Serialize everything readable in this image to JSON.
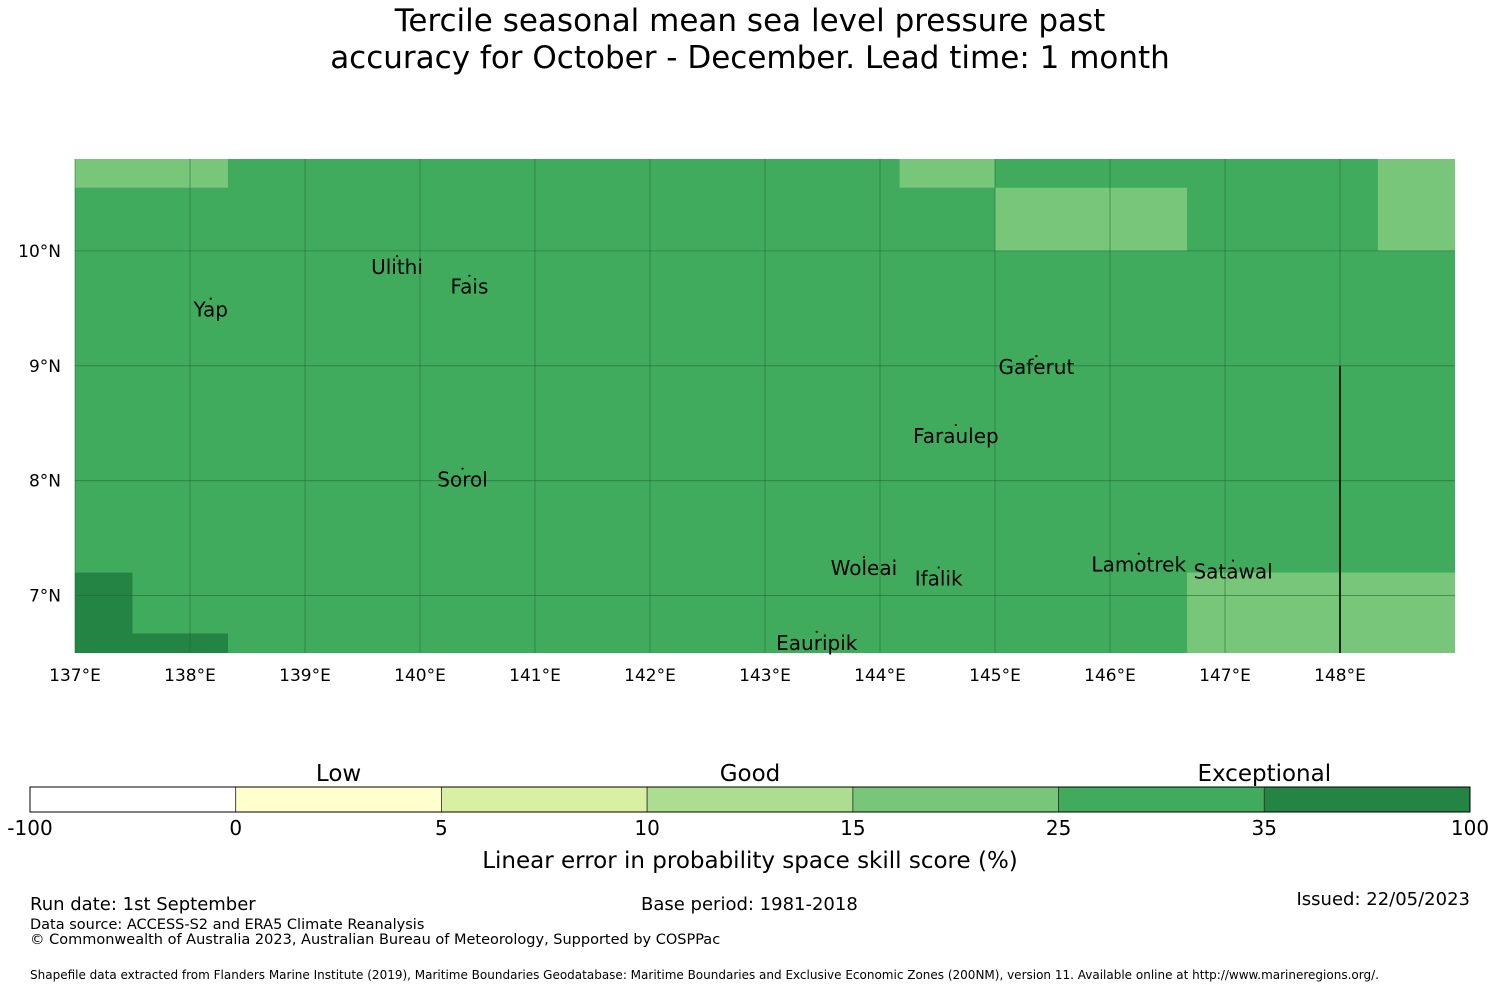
{
  "title": {
    "line1": "Tercile seasonal mean sea level pressure past",
    "line2": "accuracy for October - December. Lead time: 1 month"
  },
  "map": {
    "lon_range": [
      137,
      149
    ],
    "lat_range": [
      6.5,
      10.8
    ],
    "x_ticks": [
      "137°E",
      "138°E",
      "139°E",
      "140°E",
      "141°E",
      "142°E",
      "143°E",
      "144°E",
      "145°E",
      "146°E",
      "147°E",
      "148°E"
    ],
    "y_ticks": [
      "10°N",
      "9°N",
      "8°N",
      "7°N"
    ],
    "base_color": "#41ab5d",
    "cells": [
      {
        "lon": [
          137.0,
          138.33
        ],
        "lat": [
          10.55,
          10.8
        ],
        "color": "#78c679"
      },
      {
        "lon": [
          144.17,
          145.0
        ],
        "lat": [
          10.55,
          10.8
        ],
        "color": "#78c679"
      },
      {
        "lon": [
          145.0,
          146.67
        ],
        "lat": [
          10.0,
          10.55
        ],
        "color": "#78c679"
      },
      {
        "lon": [
          148.33,
          149.0
        ],
        "lat": [
          10.0,
          10.8
        ],
        "color": "#78c679"
      },
      {
        "lon": [
          146.67,
          149.0
        ],
        "lat": [
          6.5,
          7.2
        ],
        "color": "#78c679"
      },
      {
        "lon": [
          137.0,
          137.5
        ],
        "lat": [
          6.5,
          7.2
        ],
        "color": "#238443"
      },
      {
        "lon": [
          137.5,
          138.33
        ],
        "lat": [
          6.5,
          6.67
        ],
        "color": "#238443"
      }
    ],
    "places": [
      {
        "name": "Ulithi",
        "lon": 139.8,
        "lat": 9.85
      },
      {
        "name": "Fais",
        "lon": 140.43,
        "lat": 9.68
      },
      {
        "name": "Yap",
        "lon": 138.18,
        "lat": 9.48
      },
      {
        "name": "Gaferut",
        "lon": 145.36,
        "lat": 8.98
      },
      {
        "name": "Faraulep",
        "lon": 144.66,
        "lat": 8.38
      },
      {
        "name": "Sorol",
        "lon": 140.37,
        "lat": 8.0
      },
      {
        "name": "Woleai",
        "lon": 143.86,
        "lat": 7.23
      },
      {
        "name": "Lamotrek",
        "lon": 146.25,
        "lat": 7.26
      },
      {
        "name": "Satawal",
        "lon": 147.07,
        "lat": 7.2
      },
      {
        "name": "Ifalik",
        "lon": 144.51,
        "lat": 7.14
      },
      {
        "name": "Eauripik",
        "lon": 143.45,
        "lat": 6.58
      }
    ],
    "boundary_line": {
      "lon": 148.0,
      "lat": [
        6.5,
        9.0
      ]
    }
  },
  "legend": {
    "categories": [
      "Low",
      "Good",
      "Exceptional"
    ],
    "bins": [
      {
        "from": "-100",
        "to": "0",
        "color": "#ffffff"
      },
      {
        "from": "0",
        "to": "5",
        "color": "#ffffcc"
      },
      {
        "from": "5",
        "to": "10",
        "color": "#d9f0a3"
      },
      {
        "from": "10",
        "to": "15",
        "color": "#addd8e"
      },
      {
        "from": "15",
        "to": "25",
        "color": "#78c679"
      },
      {
        "from": "25",
        "to": "35",
        "color": "#41ab5d"
      },
      {
        "from": "35",
        "to": "100",
        "color": "#238443"
      }
    ],
    "tick_labels": [
      "-100",
      "0",
      "5",
      "10",
      "15",
      "25",
      "35",
      "100"
    ],
    "label": "Linear error in probability space skill score (%)"
  },
  "footer": {
    "run_date": "Run date: 1st September",
    "base_period": "Base period: 1981-2018",
    "issued": "Issued: 22/05/2023",
    "data_source": "Data source: ACCESS-S2 and ERA5 Climate Reanalysis",
    "copyright": "© Commonwealth of Australia 2023, Australian Bureau of Meteorology, Supported by COSPPac",
    "shapefile": "Shapefile data extracted from Flanders Marine Institute (2019), Maritime Boundaries Geodatabase: Maritime Boundaries and Exclusive Economic Zones (200NM), version 11. Available online at http://www.marineregions.org/."
  }
}
